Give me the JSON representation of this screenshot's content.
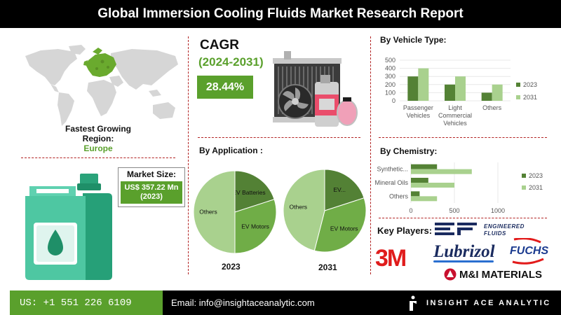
{
  "header": {
    "title": "Global Immersion Cooling Fluids Market Research Report"
  },
  "region": {
    "label": "Fastest Growing Region:",
    "name": "Europe"
  },
  "market_size": {
    "label": "Market Size:",
    "value": "US$ 357.22 Mn (2023)"
  },
  "cagr": {
    "title": "CAGR",
    "period": "(2024-2031)",
    "value": "28.44%"
  },
  "application": {
    "title": "By Application :"
  },
  "vehicle": {
    "title": "By Vehicle Type:"
  },
  "chemistry": {
    "title": "By Chemistry:"
  },
  "key_players": {
    "label": "Key Players:",
    "logos": [
      "EF",
      "ENGINEERED FLUIDS",
      "3M",
      "Lubrizol",
      "FUCHS",
      "M&I MATERIALS"
    ]
  },
  "footer": {
    "phone": "US: +1 551 226 6109",
    "email": "Email: info@insightaceanalytic.com",
    "brand": "INSIGHT ACE ANALYTIC"
  },
  "colors": {
    "accent": "#5aa02c",
    "dark_green": "#548235",
    "light_green": "#a9d18e",
    "pie_green": "#70ad47",
    "pie_dark": "#538135",
    "map_green": "#6aaa2e"
  },
  "icons": [
    "world-map-icon",
    "jerrycan-icon",
    "radiator-icon",
    "brand-logo-icon"
  ],
  "chart_data": [
    {
      "type": "pie",
      "title": "2023",
      "slices": [
        {
          "label": "EV Batteries",
          "value": 20
        },
        {
          "label": "EV Motors",
          "value": 30
        },
        {
          "label": "Others",
          "value": 50
        }
      ]
    },
    {
      "type": "pie",
      "title": "2031",
      "slices": [
        {
          "label": "EV...",
          "value": 20
        },
        {
          "label": "EV Motors",
          "value": 34
        },
        {
          "label": "Others",
          "value": 46
        }
      ]
    },
    {
      "type": "bar",
      "title": "By Vehicle Type:",
      "categories": [
        "Passenger Vehicles",
        "Light Commercial Vehicles",
        "Others"
      ],
      "category_lines": [
        [
          "Passenger",
          "Vehicles"
        ],
        [
          "Light",
          "Commercial",
          "Vehicles"
        ],
        [
          "Others"
        ]
      ],
      "series": [
        {
          "name": "2023",
          "values": [
            300,
            200,
            100
          ]
        },
        {
          "name": "2031",
          "values": [
            400,
            300,
            200
          ]
        }
      ],
      "ylim": [
        0,
        500
      ],
      "yticks": [
        0,
        100,
        200,
        300,
        400,
        500
      ],
      "grid": true,
      "legend": "right"
    },
    {
      "type": "bar",
      "orientation": "horizontal",
      "title": "By Chemistry:",
      "categories": [
        "Synthetic...",
        "Mineral Oils",
        "Others"
      ],
      "series": [
        {
          "name": "2023",
          "values": [
            300,
            200,
            100
          ]
        },
        {
          "name": "2031",
          "values": [
            700,
            500,
            300
          ]
        }
      ],
      "xlim": [
        0,
        1000
      ],
      "xticks": [
        0,
        500,
        1000
      ],
      "grid": true,
      "legend": "right"
    }
  ]
}
